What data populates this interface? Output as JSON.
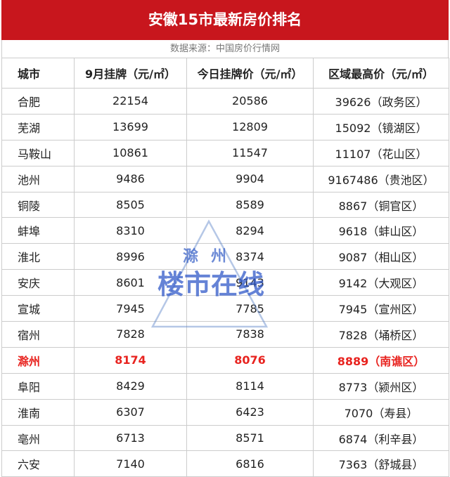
{
  "header": {
    "title": "安徽15市最新房价排名",
    "source": "数据来源：中国房价行情网"
  },
  "table": {
    "columns": [
      "城市",
      "9月挂牌（元/㎡）",
      "今日挂牌价（元/㎡）",
      "区域最高价（元/㎡）"
    ],
    "rows": [
      [
        "合肥",
        22154,
        20586,
        "39626（政务区）"
      ],
      [
        "芜湖",
        13699,
        12809,
        "15092（镜湖区）"
      ],
      [
        "马鞍山",
        10861,
        11547,
        "11107（花山区）"
      ],
      [
        "池州",
        9486,
        9904,
        "9167486（贵池区）"
      ],
      [
        "铜陵",
        8505,
        8589,
        "8867（铜官区）"
      ],
      [
        "蚌埠",
        8310,
        8294,
        "9618（蚌山区）"
      ],
      [
        "淮北",
        8996,
        8374,
        "9087（相山区）"
      ],
      [
        "安庆",
        8601,
        9143,
        "9142（大观区）"
      ],
      [
        "宣城",
        7945,
        7785,
        "7945（宣州区）"
      ],
      [
        "宿州",
        7828,
        7838,
        "7828（埇桥区）"
      ],
      [
        "滁州",
        8174,
        8076,
        "8889（南谯区）"
      ],
      [
        "阜阳",
        8429,
        8114,
        "8773（颍州区）"
      ],
      [
        "淮南",
        6307,
        6423,
        "7070（寿县）"
      ],
      [
        "亳州",
        6713,
        8571,
        "6874（利辛县）"
      ],
      [
        "六安",
        7140,
        6816,
        "7363（舒城县）"
      ]
    ],
    "highlight": {
      "row": 10,
      "color": "#e8231f"
    }
  },
  "watermark": {
    "line1": "滁州",
    "line2": "楼市在线"
  }
}
